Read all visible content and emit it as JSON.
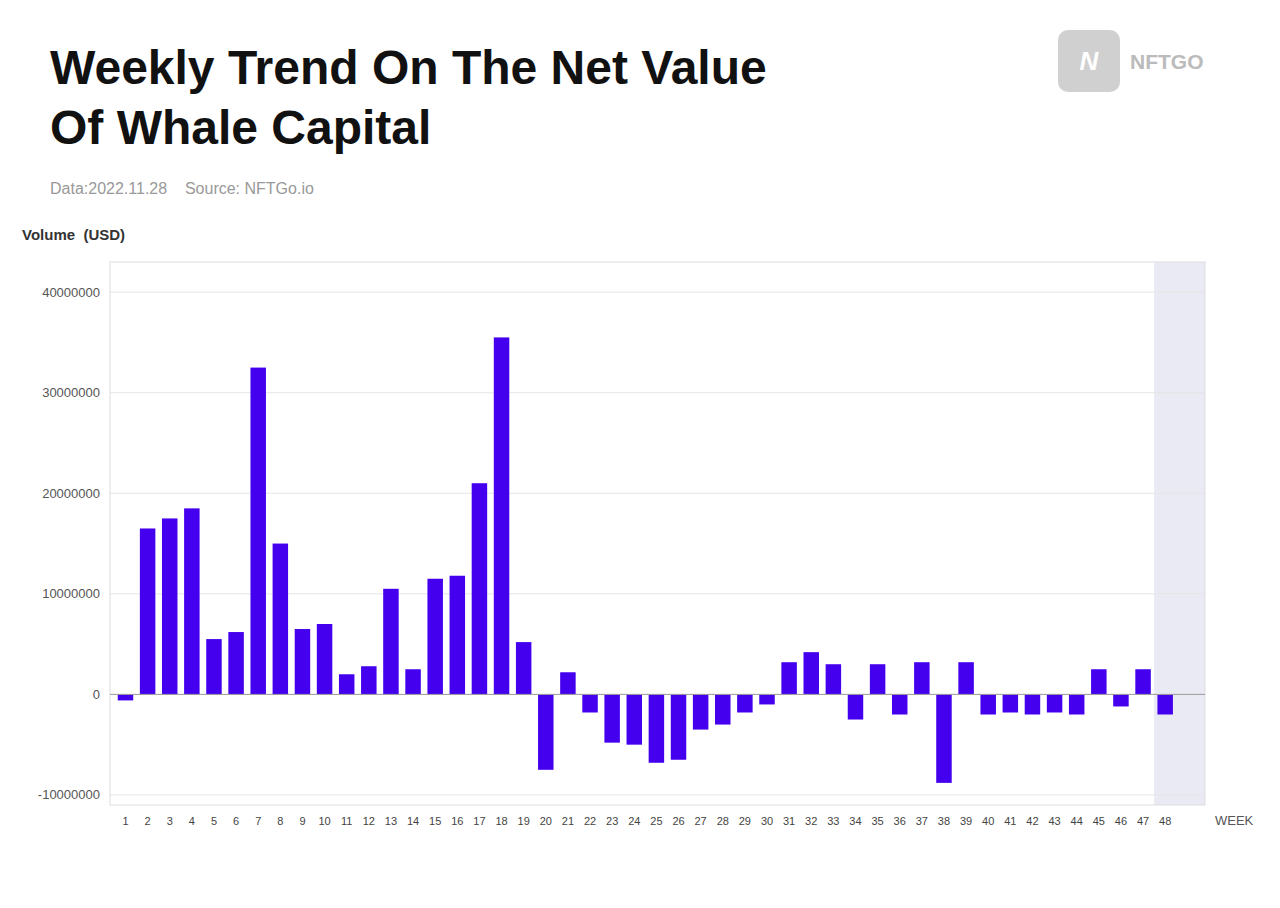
{
  "chart_data": {
    "type": "bar",
    "title": [
      "Weekly Trend On The Net Value",
      "Of Whale Capital"
    ],
    "subtitle": "Data:2022.11.28    Source: NFTGo.io",
    "y_label": "Volume  (USD)",
    "x_label": "WEEK",
    "annotations": [
      "N",
      "NFTGO"
    ],
    "color": "#4400EE",
    "grid": true,
    "x": [
      1,
      2,
      3,
      4,
      5,
      6,
      7,
      8,
      9,
      10,
      11,
      12,
      13,
      14,
      15,
      16,
      17,
      18,
      19,
      20,
      21,
      22,
      23,
      24,
      25,
      26,
      27,
      28,
      29,
      30,
      31,
      32,
      33,
      34,
      35,
      36,
      37,
      38,
      39,
      40,
      41,
      42,
      43,
      44,
      45,
      46,
      47,
      48
    ],
    "values": [
      -600000,
      16500000,
      17500000,
      18500000,
      5500000,
      6200000,
      32500000,
      15000000,
      6500000,
      7000000,
      2000000,
      2800000,
      10500000,
      2500000,
      11500000,
      11800000,
      21000000,
      35500000,
      5200000,
      -7500000,
      2200000,
      -1800000,
      -4800000,
      -5000000,
      -6800000,
      -6500000,
      -3500000,
      -3000000,
      -1800000,
      -1000000,
      3200000,
      4200000,
      3000000,
      -2500000,
      3000000,
      -2000000,
      3200000,
      -8800000,
      3200000,
      -2000000,
      -1800000,
      -2000000,
      -1800000,
      -2000000,
      2500000,
      -1200000,
      2500000,
      -2000000
    ],
    "xlim": [
      0.3,
      49.8
    ],
    "xticks": [
      1,
      2,
      3,
      4,
      5,
      6,
      7,
      8,
      9,
      10,
      11,
      12,
      13,
      14,
      15,
      16,
      17,
      18,
      19,
      20,
      21,
      22,
      23,
      24,
      25,
      26,
      27,
      28,
      29,
      30,
      31,
      32,
      33,
      34,
      35,
      36,
      37,
      38,
      39,
      40,
      41,
      42,
      43,
      44,
      45,
      46,
      47,
      48
    ],
    "ylim": [
      -11000000,
      43000000
    ],
    "yticks": [
      -10000000,
      0,
      10000000,
      20000000,
      30000000,
      40000000
    ]
  }
}
